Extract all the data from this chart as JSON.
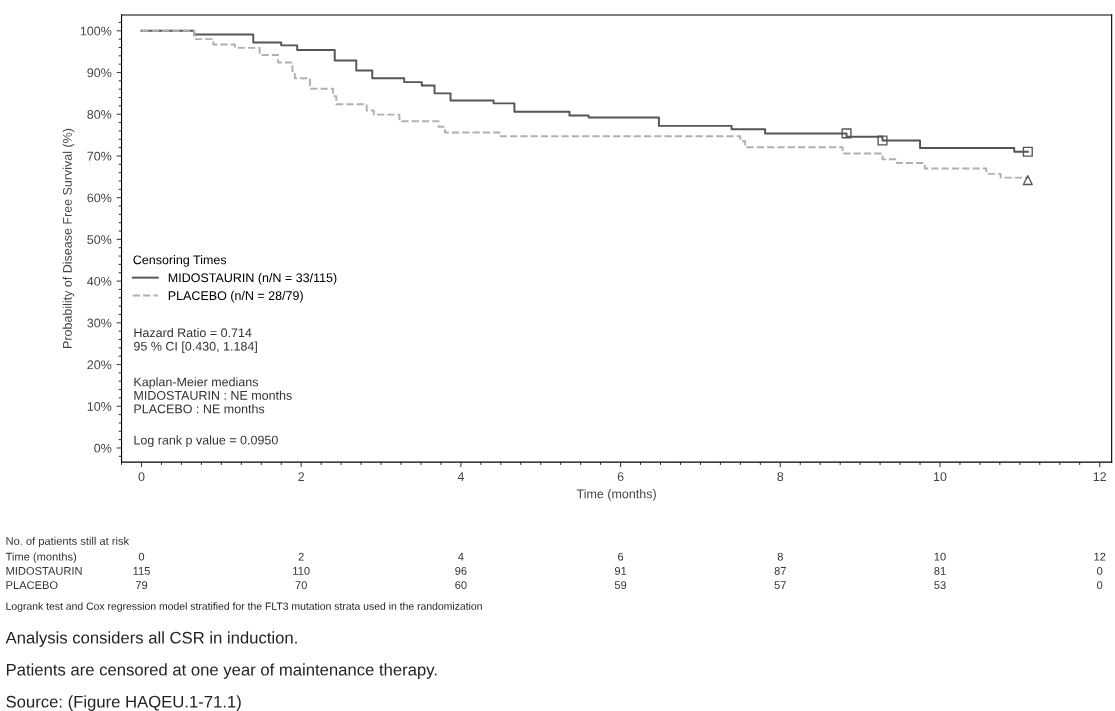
{
  "chart_data": {
    "type": "step",
    "xlabel": "Time (months)",
    "ylabel": "Probability of Disease Free Survival (%)",
    "xlim": [
      -0.25,
      12.15
    ],
    "ylim": [
      -3.4,
      103.8
    ],
    "xticks": [
      0,
      2,
      4,
      6,
      8,
      10,
      12
    ],
    "yticks": [
      {
        "value": 0,
        "label": "0%"
      },
      {
        "value": 10,
        "label": "10%"
      },
      {
        "value": 20,
        "label": "20%"
      },
      {
        "value": 30,
        "label": "30%"
      },
      {
        "value": 40,
        "label": "40%"
      },
      {
        "value": 50,
        "label": "50%"
      },
      {
        "value": 60,
        "label": "60%"
      },
      {
        "value": 70,
        "label": "70%"
      },
      {
        "value": 80,
        "label": "80%"
      },
      {
        "value": 90,
        "label": "90%"
      },
      {
        "value": 100,
        "label": "100%"
      }
    ],
    "grid": false,
    "legend": "left",
    "legend_title": "Censoring Times",
    "series": [
      {
        "name": "MIDOSTAURIN (n/N = 33/115)",
        "color": "#555555",
        "line_style": "solid",
        "x": [
          0,
          0.66,
          1.4,
          1.75,
          1.95,
          2.42,
          2.69,
          2.89,
          3.29,
          3.51,
          3.67,
          3.87,
          4.41,
          4.67,
          5.36,
          5.6,
          6.48,
          7.39,
          7.81,
          8.83,
          9.28,
          9.75,
          10.93,
          11.1
        ],
        "values": [
          100,
          99.1,
          97.2,
          96.5,
          95.4,
          92.9,
          90.5,
          88.6,
          87.7,
          86.9,
          85,
          83.3,
          82.6,
          80.6,
          79.7,
          79.2,
          77.2,
          76.4,
          75.4,
          74.6,
          73.7,
          71.9,
          71.0,
          71.0
        ]
      },
      {
        "name": "PLACEBO (n/N = 28/79)",
        "color": "#b0b0b0",
        "line_style": "dashed",
        "x": [
          0,
          0.66,
          0.9,
          1.17,
          1.48,
          1.71,
          1.89,
          1.92,
          2.11,
          2.4,
          2.44,
          2.82,
          2.91,
          3.23,
          3.72,
          3.8,
          4.48,
          7.5,
          7.56,
          8.78,
          9.28,
          9.46,
          9.81,
          10.58,
          10.76,
          11.1
        ],
        "values": [
          100,
          98.0,
          96.7,
          95.9,
          94.2,
          92.4,
          90.3,
          88.6,
          86.1,
          84.3,
          82.4,
          80.9,
          79.9,
          78.3,
          77.0,
          75.6,
          74.7,
          73.5,
          72.1,
          70.6,
          69.2,
          68.3,
          67.0,
          65.7,
          64.8,
          64.8
        ]
      },
      {
        "type": "scatter",
        "marker": "square",
        "color": "#555555",
        "x": [
          8.83,
          9.28,
          11.1
        ],
        "values": [
          75.4,
          73.7,
          71.0
        ]
      },
      {
        "type": "scatter",
        "marker": "triangle",
        "color": "#555555",
        "x": [
          11.1
        ],
        "values": [
          64.2
        ]
      }
    ],
    "annotations": [
      "Hazard Ratio = 0.714\n95 % CI [0.430, 1.184]",
      "Kaplan-Meier medians\nMIDOSTAURIN : NE months\nPLACEBO : NE months",
      "Log rank p value = 0.0950",
      "No. of patients still at risk",
      "Time (months)\t0\t2\t4\t6\t8\t10\t12",
      "MIDOSTAURIN\t115\t110\t96\t91\t87\t81\t0",
      "PLACEBO\t79\t70\t60\t59\t57\t53\t0",
      "Logrank test and Cox regression model stratified for the FLT3 mutation strata used in the randomization",
      "Analysis considers all CSR in induction.",
      "Patients are censored at one year of maintenance therapy.",
      "Source: (Figure HAQEU.1-71.1)"
    ]
  }
}
